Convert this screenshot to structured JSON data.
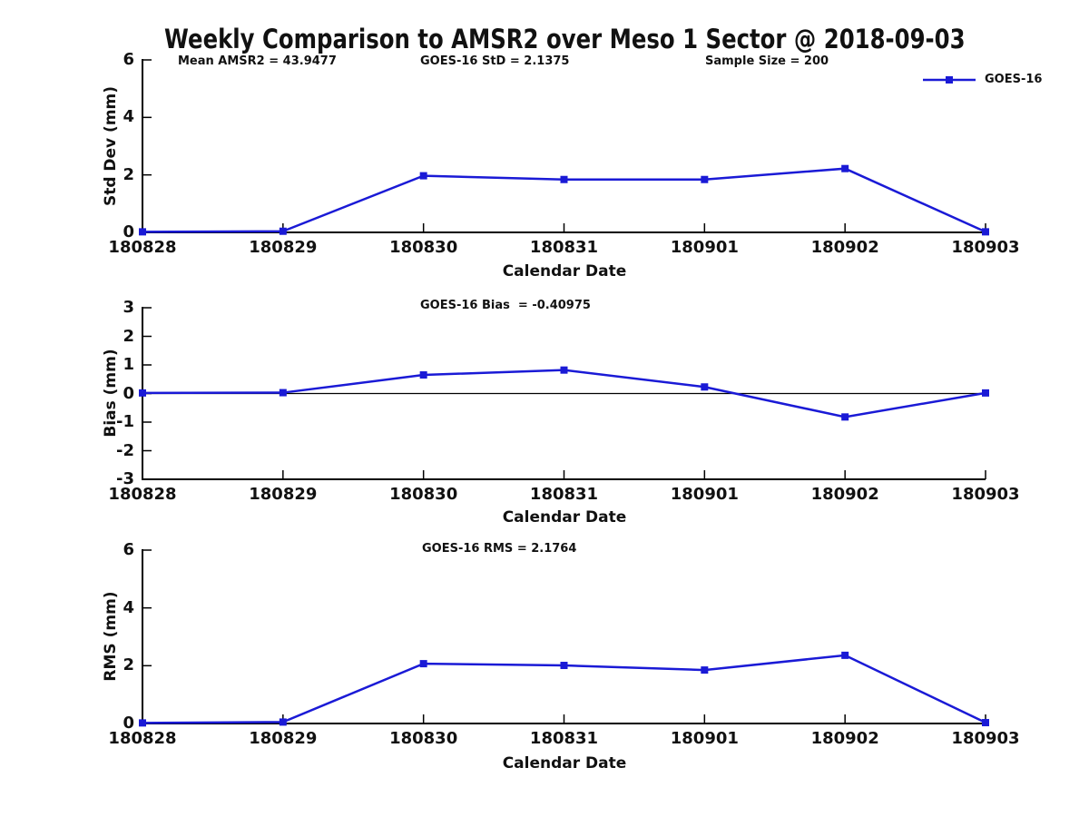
{
  "title": "Weekly Comparison to AMSR2 over Meso 1 Sector @ 2018-09-03",
  "legend": {
    "label": "GOES-16"
  },
  "colors": {
    "series": "#1a1ad6",
    "axis": "#000000",
    "text": "#111111"
  },
  "chart_data": [
    {
      "type": "line",
      "panel": "std-dev",
      "annotations": {
        "left": "Mean AMSR2 = 43.9477",
        "center": "GOES-16 StD = 2.1375",
        "right": "Sample Size = 200"
      },
      "ylabel": "Std Dev (mm)",
      "xlabel": "Calendar Date",
      "categories": [
        "180828",
        "180829",
        "180830",
        "180831",
        "180901",
        "180902",
        "180903"
      ],
      "yticks": [
        0,
        2,
        4,
        6
      ],
      "ylim": [
        0,
        6
      ],
      "zero_line": false,
      "grid": false,
      "legend_position": "top-right",
      "series": [
        {
          "name": "GOES-16",
          "values": [
            0.02,
            0.04,
            1.97,
            1.84,
            1.84,
            2.22,
            0.02
          ]
        }
      ]
    },
    {
      "type": "line",
      "panel": "bias",
      "annotations": {
        "center": "GOES-16 Bias  = -0.40975"
      },
      "ylabel": "Bias (mm)",
      "xlabel": "Calendar Date",
      "categories": [
        "180828",
        "180829",
        "180830",
        "180831",
        "180901",
        "180902",
        "180903"
      ],
      "yticks": [
        -3,
        -2,
        -1,
        0,
        1,
        2,
        3
      ],
      "ylim": [
        -3,
        3
      ],
      "zero_line": true,
      "grid": false,
      "series": [
        {
          "name": "GOES-16",
          "values": [
            0.02,
            0.03,
            0.65,
            0.82,
            0.23,
            -0.82,
            0.02
          ]
        }
      ]
    },
    {
      "type": "line",
      "panel": "rms",
      "annotations": {
        "center": "GOES-16 RMS = 2.1764"
      },
      "ylabel": "RMS (mm)",
      "xlabel": "Calendar Date",
      "categories": [
        "180828",
        "180829",
        "180830",
        "180831",
        "180901",
        "180902",
        "180903"
      ],
      "yticks": [
        0,
        2,
        4,
        6
      ],
      "ylim": [
        0,
        6
      ],
      "zero_line": false,
      "grid": false,
      "series": [
        {
          "name": "GOES-16",
          "values": [
            0.02,
            0.05,
            2.07,
            2.01,
            1.85,
            2.36,
            0.03
          ]
        }
      ]
    }
  ]
}
